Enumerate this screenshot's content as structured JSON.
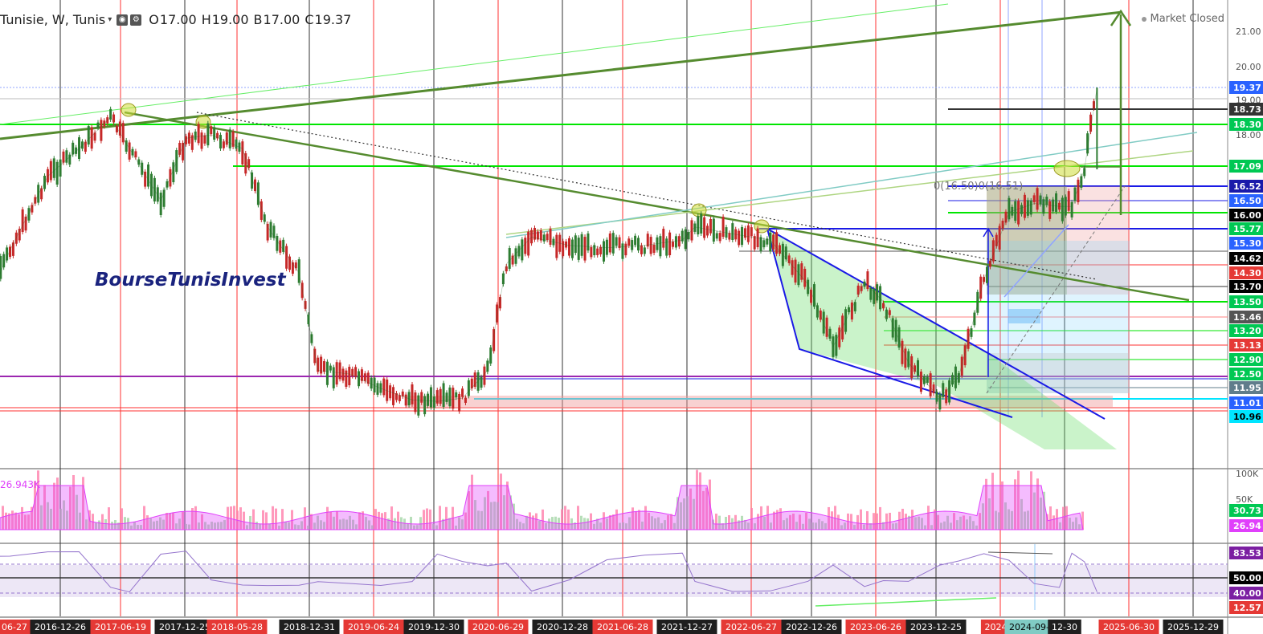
{
  "header": {
    "symbol": "Tunisie, W, Tunis",
    "o_label": "O",
    "o_value": "17.00",
    "h_label": "H",
    "h_value": "19.00",
    "b_label": "B",
    "b_value": "17.00",
    "c_label": "C",
    "c_value": "19.37"
  },
  "market_status": "Market Closed",
  "watermark": "BourseTunisInvest",
  "fib_annotation": "0(16.50)0(16.51)",
  "chart_data": [
    {
      "type": "line",
      "panel": "price",
      "title": "Tunisie, W, Tunis",
      "interval": "weekly",
      "last": {
        "open": 17.0,
        "high": 19.0,
        "low": 17.0,
        "close": 19.37
      },
      "y_axis_ticks": [
        "21.00",
        "20.00",
        "19.00",
        "18.00"
      ],
      "ylim": [
        10.9,
        21.5
      ],
      "x_ticks": [
        "06-27",
        "2016-12-26",
        "2017-06-19",
        "2017-12-25",
        "2018-05-28",
        "2018-12-31",
        "2019-06-24",
        "2019-12-30",
        "2020-06-29",
        "2020-12-28",
        "2021-06-28",
        "2021-12-27",
        "2022-06-27",
        "2022-12-26",
        "2023-06-26",
        "2023-12-25",
        "2024-0",
        "2024-09-30",
        "12-30",
        "2025-06-30",
        "2025-12-29"
      ],
      "series": [
        {
          "x": [
            2016.3,
            2016.55,
            2016.85,
            2017.1,
            2017.35,
            2017.5,
            2017.75,
            2017.95,
            2018.15,
            2018.4,
            2018.6,
            2018.85,
            2019.0,
            2019.25,
            2019.5,
            2019.75,
            2019.95,
            2020.15,
            2020.35,
            2020.5,
            2020.7,
            2021.0,
            2021.3,
            2021.6,
            2021.9,
            2022.0,
            2022.3,
            2022.6,
            2022.9,
            2023.1,
            2023.35,
            2023.5,
            2023.7,
            2023.95,
            2024.1,
            2024.3,
            2024.5,
            2024.7,
            2024.9,
            2025.0,
            2025.1,
            2025.2
          ],
          "values": [
            13.3,
            15.0,
            16.8,
            17.6,
            18.5,
            17.6,
            16.5,
            17.9,
            18.0,
            17.6,
            15.8,
            14.3,
            12.6,
            12.5,
            11.9,
            11.2,
            11.1,
            11.3,
            12.6,
            14.5,
            15.5,
            15.2,
            15.1,
            15.2,
            15.4,
            15.8,
            15.6,
            15.4,
            13.8,
            13.1,
            13.9,
            13.5,
            12.8,
            11.3,
            12.4,
            14.0,
            16.1,
            16.4,
            16.3,
            16.3,
            17.0,
            19.37
          ]
        }
      ],
      "price_labels": [
        {
          "value": "19.37",
          "color": "#2962ff"
        },
        {
          "value": "18.73",
          "color": "#333333"
        },
        {
          "value": "18.30",
          "color": "#00c853"
        },
        {
          "value": "17.09",
          "color": "#00c853"
        },
        {
          "value": "16.52",
          "color": "#1a1aaa"
        },
        {
          "value": "16.50",
          "color": "#2962ff"
        },
        {
          "value": "16.00",
          "color": "#000000"
        },
        {
          "value": "15.77",
          "color": "#00c853"
        },
        {
          "value": "15.30",
          "color": "#2962ff"
        },
        {
          "value": "14.62",
          "color": "#000000"
        },
        {
          "value": "14.30",
          "color": "#e53935"
        },
        {
          "value": "13.70",
          "color": "#000000"
        },
        {
          "value": "13.50",
          "color": "#00c853"
        },
        {
          "value": "13.46",
          "color": "#555555"
        },
        {
          "value": "13.20",
          "color": "#00c853"
        },
        {
          "value": "13.13",
          "color": "#e53935"
        },
        {
          "value": "12.90",
          "color": "#00c853"
        },
        {
          "value": "12.50",
          "color": "#00c853"
        },
        {
          "value": "11.95",
          "color": "#607d8b"
        },
        {
          "value": "11.01",
          "color": "#2962ff"
        },
        {
          "value": "10.96",
          "color": "#00e5ff"
        }
      ]
    },
    {
      "type": "bar",
      "panel": "volume",
      "legend_value": "26.943K",
      "y_axis_ticks": [
        "100K",
        "50K"
      ],
      "labels": [
        {
          "value": "30.73",
          "color": "#00c853"
        },
        {
          "value": "26.94",
          "color": "#e040fb"
        }
      ]
    },
    {
      "type": "line",
      "panel": "rsi",
      "y_axis_ticks": [
        "50.00"
      ],
      "labels": [
        {
          "value": "83.53",
          "color": "#7b1fa2"
        },
        {
          "value": "50.00",
          "color": "#000000"
        },
        {
          "value": "40.00",
          "color": "#7b1fa2"
        },
        {
          "value": "12.57",
          "color": "#e53935"
        }
      ]
    }
  ],
  "colors": {
    "red_line": "#ff3030",
    "dark_line": "#333333",
    "trend_green": "#558b2f",
    "bright_green": "#00e600",
    "blue": "#1a1ae6",
    "volume_pink": "#ff80c0",
    "rsi_purple": "#9575cd"
  }
}
